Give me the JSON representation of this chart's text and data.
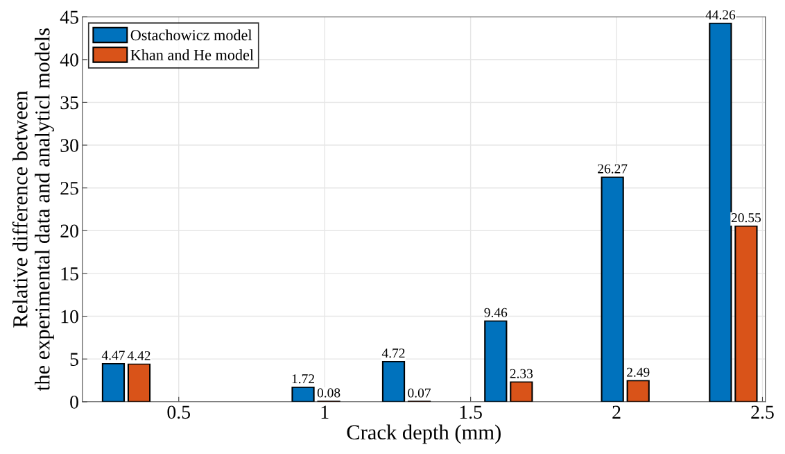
{
  "chart_data": {
    "type": "bar",
    "xlabel": "Crack depth (mm)",
    "ylabel": "Relative difference between\nthe experimental data and analyticl models",
    "x": [
      0.32,
      0.97,
      1.28,
      1.63,
      2.03,
      2.4
    ],
    "series": [
      {
        "name": "Ostachowicz model",
        "color": "#0072bd",
        "values": [
          4.47,
          1.72,
          4.72,
          9.46,
          26.27,
          44.26
        ]
      },
      {
        "name": "Khan and He model",
        "color": "#d95319",
        "values": [
          4.42,
          0.08,
          0.07,
          2.33,
          2.49,
          20.55
        ]
      }
    ],
    "xlim": [
      0.17,
      2.51
    ],
    "xticks": [
      0.5,
      1,
      1.5,
      2,
      2.5
    ],
    "ylim": [
      0,
      45
    ],
    "yticks": [
      0,
      5,
      10,
      15,
      20,
      25,
      30,
      35,
      40,
      45
    ],
    "grid": true,
    "legend": "top left",
    "data_labels": true
  }
}
